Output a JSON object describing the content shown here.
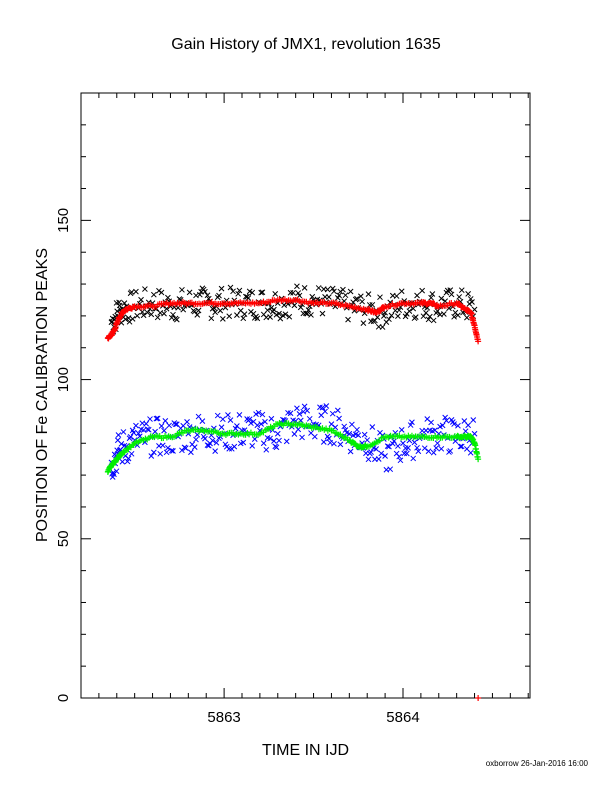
{
  "chart_data": {
    "type": "scatter",
    "title": "Gain History of JMX1, revolution 1635",
    "xlabel": "TIME IN IJD",
    "ylabel": "POSITION OF Fe CALIBRATION PEAKS",
    "xlim": [
      5862.2,
      5864.71
    ],
    "ylim": [
      0,
      190
    ],
    "xticks": [
      5863,
      5864
    ],
    "xtick_labels": [
      "5863",
      "5864"
    ],
    "yticks": [
      0,
      50,
      100,
      150
    ],
    "ytick_labels": [
      "0",
      "50",
      "100",
      "150"
    ],
    "grid": false,
    "legend": "none",
    "series": [
      {
        "color": "#000000",
        "marker": "x",
        "x": [
          5862.37,
          5862.42,
          5862.5,
          5862.6,
          5862.7,
          5862.8,
          5862.9,
          5863.0,
          5863.1,
          5863.2,
          5863.3,
          5863.4,
          5863.5,
          5863.6,
          5863.7,
          5863.8,
          5863.9,
          5864.0,
          5864.1,
          5864.2,
          5864.3,
          5864.4
        ],
        "y": [
          118,
          122,
          123,
          124,
          123,
          124,
          124,
          124,
          124,
          124,
          124,
          125,
          125,
          124,
          123,
          122,
          121,
          124,
          124,
          123,
          124,
          122
        ],
        "scatter": 5
      },
      {
        "color": "#ff0000",
        "marker": "+",
        "x": [
          5862.35,
          5862.37,
          5862.39,
          5862.41,
          5862.43,
          5862.45,
          5862.5,
          5862.6,
          5862.7,
          5862.8,
          5862.9,
          5863.0,
          5863.1,
          5863.2,
          5863.3,
          5863.4,
          5863.5,
          5863.6,
          5863.7,
          5863.8,
          5863.85,
          5863.9,
          5864.0,
          5864.1,
          5864.15,
          5864.2,
          5864.3,
          5864.35,
          5864.38,
          5864.4,
          5864.42
        ],
        "y": [
          113,
          114,
          116,
          119,
          121,
          122,
          123,
          123,
          124,
          124,
          124,
          124,
          124,
          124,
          125,
          125,
          124,
          124,
          123,
          122,
          121,
          123,
          124,
          124,
          124,
          123,
          124,
          122,
          121,
          117,
          112
        ],
        "scatter": 0
      },
      {
        "color": "#0000ff",
        "marker": "x",
        "x": [
          5862.37,
          5862.42,
          5862.5,
          5862.6,
          5862.7,
          5862.8,
          5862.9,
          5863.0,
          5863.1,
          5863.2,
          5863.3,
          5863.4,
          5863.5,
          5863.6,
          5863.7,
          5863.8,
          5863.9,
          5864.0,
          5864.1,
          5864.2,
          5864.3,
          5864.4
        ],
        "y": [
          74,
          78,
          81,
          82,
          82,
          83,
          84,
          83,
          84,
          84,
          83,
          87,
          86,
          86,
          83,
          81,
          76,
          80,
          82,
          83,
          82,
          83
        ],
        "scatter": 6
      },
      {
        "color": "#00ee00",
        "marker": "+",
        "x": [
          5862.35,
          5862.37,
          5862.4,
          5862.43,
          5862.5,
          5862.6,
          5862.7,
          5862.8,
          5862.9,
          5863.0,
          5863.1,
          5863.2,
          5863.3,
          5863.4,
          5863.5,
          5863.6,
          5863.7,
          5863.75,
          5863.8,
          5863.9,
          5864.0,
          5864.1,
          5864.2,
          5864.3,
          5864.35,
          5864.38,
          5864.4,
          5864.42
        ],
        "y": [
          71,
          73,
          75,
          77,
          80,
          82,
          82,
          84,
          84,
          83,
          83,
          83,
          86,
          86,
          85,
          84,
          81,
          79,
          79,
          82,
          82,
          82,
          82,
          82,
          82,
          82,
          80,
          75
        ],
        "scatter": 0
      }
    ]
  },
  "footer": {
    "note": "oxborrow 26-Jan-2016 16:00"
  }
}
